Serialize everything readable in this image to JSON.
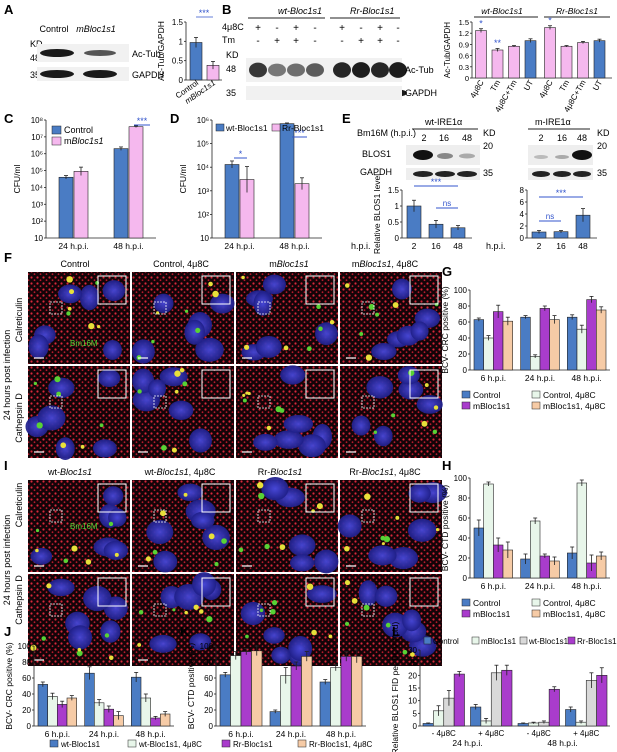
{
  "colors": {
    "blue": "#4a7cc4",
    "pink": "#f5b8ee",
    "magenta": "#a93ccc",
    "peach": "#f6cba6",
    "lightgreen": "#e8f6ea",
    "lightgray": "#d9d9d9",
    "sig_blue": "#3355cc",
    "sig_red": "#d22222",
    "micro_blue": "#3230a0",
    "micro_red": "#d9283a",
    "micro_green": "#58d235",
    "micro_yellow": "#e8e03a"
  },
  "panelA": {
    "letter": "A",
    "kd": "KD",
    "marker48": "48",
    "marker35": "35",
    "lanes": [
      "Control",
      "mBloc1s1"
    ],
    "ab_tub": "Ac-Tub",
    "ab_gapdh": "GAPDH",
    "sig": "***",
    "chart_data": {
      "type": "bar",
      "categories": [
        "Control",
        "mBloc1s1"
      ],
      "values": [
        0.97,
        0.38
      ],
      "errors": [
        0.13,
        0.1
      ],
      "ylabel": "Ac-Tub/GAPDH",
      "ylim": [
        0,
        1.5
      ],
      "yticks": [
        "0",
        "0.5",
        "1",
        "1.5"
      ]
    }
  },
  "panelB": {
    "letter": "B",
    "kd": "KD",
    "marker48": "48",
    "marker35": "35",
    "group_wt": "wt-Bloc1s1",
    "group_rr": "Rr-Bloc1s1",
    "row_u48c": "4μ8C",
    "row_tm": "Tm",
    "u48c_signs": [
      "+",
      "-",
      "+",
      "-",
      "+",
      "-",
      "+",
      "-"
    ],
    "tm_signs": [
      "-",
      "+",
      "+",
      "-",
      "-",
      "+",
      "+",
      "-"
    ],
    "ab_tub": "Ac-Tub",
    "ab_gapdh": "GAPDH",
    "chart_data": {
      "type": "bar",
      "groups": [
        "wt-Bloc1s1",
        "Rr-Bloc1s1"
      ],
      "categories": [
        "4μ8C",
        "Tm",
        "4μ8C+Tm",
        "UT",
        "4μ8C",
        "Tm",
        "4μ8C+Tm",
        "UT"
      ],
      "values": [
        1.27,
        0.75,
        0.85,
        1.0,
        1.35,
        0.85,
        0.95,
        1.0
      ],
      "errors": [
        0.05,
        0.04,
        0.02,
        0.05,
        0.05,
        0.02,
        0.03,
        0.04
      ],
      "colors": [
        "pink",
        "pink",
        "pink",
        "blue",
        "pink",
        "pink",
        "pink",
        "blue"
      ],
      "sig": [
        "*",
        "**",
        "",
        "",
        "*",
        "",
        "",
        ""
      ],
      "ylabel": "Ac-Tub/GAPDH",
      "ylim": [
        0,
        1.5
      ],
      "yticks": [
        "0",
        "0.3",
        "0.6",
        "0.9",
        "1.2",
        "1.5"
      ]
    }
  },
  "panelC": {
    "letter": "C",
    "chart_data": {
      "type": "bar",
      "categories": [
        "24 h.p.i.",
        "48 h.p.i."
      ],
      "series": [
        {
          "name": "Control",
          "values": [
            40000,
            2000000
          ],
          "errors": [
            0.1,
            0.1
          ]
        },
        {
          "name": "mBloc1s1",
          "values": [
            90000,
            40000000
          ],
          "errors": [
            0.25,
            0.05
          ]
        }
      ],
      "ylabel": "CFU/ml",
      "yscale": "log",
      "ylim": [
        10,
        100000000
      ],
      "yticks": [
        "10",
        "10²",
        "10³",
        "10⁴",
        "10⁵",
        "10⁶",
        "10⁷",
        "10⁸"
      ],
      "sig": "***",
      "legend": "top-left"
    }
  },
  "panelD": {
    "letter": "D",
    "chart_data": {
      "type": "bar",
      "categories": [
        "24 h.p.i.",
        "48 h.p.i."
      ],
      "series": [
        {
          "name": "wt-Bloc1s1",
          "values": [
            13000,
            700000
          ],
          "errors": [
            0.15,
            0.03
          ]
        },
        {
          "name": "Rr-Bloc1s1",
          "values": [
            3000,
            2000
          ],
          "errors": [
            0.55,
            0.25
          ]
        }
      ],
      "ylabel": "CFU/ml",
      "yscale": "log",
      "ylim": [
        10,
        1000000
      ],
      "yticks": [
        "10",
        "10²",
        "10³",
        "10⁴",
        "10⁵",
        "10⁶"
      ],
      "sig": [
        "*",
        "***"
      ],
      "legend": "top"
    }
  },
  "panelE": {
    "letter": "E",
    "bm16m": "Bm16M (h.p.i.)",
    "left_title": "wt-IRE1α",
    "right_title": "m-IRE1α",
    "lanes": [
      "2",
      "16",
      "48"
    ],
    "kd": "KD",
    "m20": "20",
    "m35": "35",
    "ab_blos": "BLOS1",
    "ab_gapdh": "GAPDH",
    "hpi": "h.p.i.",
    "chart_left": {
      "type": "bar",
      "categories": [
        "2",
        "16",
        "48"
      ],
      "values": [
        1.0,
        0.43,
        0.32
      ],
      "errors": [
        0.18,
        0.12,
        0.07
      ],
      "ylabel": "Relative BLOS1 level",
      "ylim": [
        0,
        1.5
      ],
      "yticks": [
        "0",
        "0.5",
        "1",
        "1.5"
      ],
      "sig": [
        "***",
        "ns"
      ]
    },
    "chart_right": {
      "type": "bar",
      "categories": [
        "2",
        "16",
        "48"
      ],
      "values": [
        1.0,
        1.05,
        3.8
      ],
      "errors": [
        0.25,
        0.2,
        1.1
      ],
      "ylim": [
        0,
        8
      ],
      "yticks": [
        "0",
        "2",
        "4",
        "6",
        "8"
      ],
      "sig": [
        "ns",
        "***"
      ]
    }
  },
  "panelF": {
    "letter": "F",
    "cols": [
      "Control",
      "Control, 4μ8C",
      "mBloc1s1",
      "mBloc1s1, 4μ8C"
    ],
    "side": "24 hours post infection",
    "row_labels": [
      "Calreticulin",
      "Cathepsin D"
    ],
    "stain": "Bm16M"
  },
  "panelG": {
    "letter": "G",
    "chart_data": {
      "type": "bar",
      "categories": [
        "6 h.p.i.",
        "24 h.p.i.",
        "48 h.p.i."
      ],
      "series": [
        {
          "name": "Control",
          "values": [
            63,
            66,
            66
          ],
          "errors": [
            2,
            2,
            3
          ]
        },
        {
          "name": "Control, 4μ8C",
          "values": [
            40,
            17,
            51
          ],
          "errors": [
            3,
            2,
            5
          ]
        },
        {
          "name": "mBloc1s1",
          "values": [
            73,
            77,
            88
          ],
          "errors": [
            8,
            3,
            4
          ]
        },
        {
          "name": "mBloc1s1, 4μ8C",
          "values": [
            61,
            63,
            75
          ],
          "errors": [
            5,
            5,
            4
          ]
        }
      ],
      "ylabel": "BCV- CRC positive (%)",
      "ylim": [
        0,
        100
      ],
      "yticks": [
        "0",
        "20",
        "40",
        "60",
        "80",
        "100"
      ],
      "legend": "bottom"
    }
  },
  "panelI": {
    "letter": "I",
    "cols": [
      "wt-Bloc1s1",
      "wt-Bloc1s1, 4μ8C",
      "Rr-Bloc1s1",
      "Rr-Bloc1s1, 4μ8C"
    ],
    "side": "24 hours post infection",
    "row_labels": [
      "Calreticulin",
      "Cathepsin D"
    ],
    "stain": "Bm16M"
  },
  "panelH": {
    "letter": "H",
    "chart_data": {
      "type": "bar",
      "categories": [
        "6 h.p.i.",
        "24 h.p.i.",
        "48 h.p.i."
      ],
      "series": [
        {
          "name": "Control",
          "values": [
            50,
            19,
            25
          ],
          "errors": [
            8,
            5,
            6
          ]
        },
        {
          "name": "Control, 4μ8C",
          "values": [
            94,
            57,
            95
          ],
          "errors": [
            2,
            3,
            3
          ]
        },
        {
          "name": "mBloc1s1",
          "values": [
            33,
            22,
            15
          ],
          "errors": [
            7,
            2,
            8
          ]
        },
        {
          "name": "mBloc1s1, 4μ8C",
          "values": [
            28,
            17,
            22
          ],
          "errors": [
            8,
            4,
            4
          ]
        }
      ],
      "ylabel": "BCV- CTD positive (%)",
      "ylim": [
        0,
        100
      ],
      "yticks": [
        "0",
        "20",
        "40",
        "60",
        "80",
        "100"
      ],
      "legend": "bottom"
    }
  },
  "panelJ": {
    "letter": "J",
    "chart_data": {
      "type": "bar",
      "categories": [
        "6 h.p.i.",
        "24 h.p.i.",
        "48 h.p.i."
      ],
      "series": [
        {
          "name": "wt-Bloc1s1",
          "values": [
            52,
            66,
            61
          ],
          "errors": [
            3,
            8,
            6
          ]
        },
        {
          "name": "wt-Bloc1s1, 4μ8C",
          "values": [
            37,
            29,
            35
          ],
          "errors": [
            4,
            4,
            5
          ]
        },
        {
          "name": "Rr-Bloc1s1",
          "values": [
            27,
            21,
            10
          ],
          "errors": [
            4,
            4,
            2
          ]
        },
        {
          "name": "Rr-Bloc1s1, 4μ8C",
          "values": [
            35,
            13,
            15
          ],
          "errors": [
            3,
            5,
            3
          ]
        }
      ],
      "ylabel": "BCV- CRC positive (%)",
      "ylim": [
        0,
        100
      ],
      "yticks": [
        "0",
        "20",
        "40",
        "60",
        "80",
        "100"
      ]
    }
  },
  "panelK": {
    "letter": "K",
    "chart_data": {
      "type": "bar",
      "categories": [
        "6 h.p.i.",
        "24 h.p.i.",
        "48 h.p.i."
      ],
      "series": [
        {
          "name": "wt-Bloc1s1",
          "values": [
            64,
            18,
            55
          ],
          "errors": [
            3,
            2,
            3
          ]
        },
        {
          "name": "wt-Bloc1s1, 4μ8C",
          "values": [
            88,
            63,
            73
          ],
          "errors": [
            5,
            10,
            4
          ]
        },
        {
          "name": "Rr-Bloc1s1",
          "values": [
            93,
            75,
            87
          ],
          "errors": [
            4,
            5,
            6
          ]
        },
        {
          "name": "Rr-Bloc1s1, 4μ8C",
          "values": [
            94,
            87,
            87
          ],
          "errors": [
            6,
            6,
            8
          ]
        }
      ],
      "ylabel": "BCV- CTD positive (%)",
      "ylim": [
        0,
        100
      ],
      "yticks": [
        "0",
        "20",
        "40",
        "60",
        "80",
        "100"
      ]
    },
    "legend_names": [
      "wt-Bloc1s1",
      "wt-Bloc1s1, 4μ8C",
      "Rr-Bloc1s1",
      "Rr-Bloc1s1, 4μ8C"
    ]
  },
  "panelL": {
    "letter": "L",
    "chart_data": {
      "type": "bar",
      "groups": [
        "24 h.p.i.",
        "48 h.p.i."
      ],
      "categories": [
        "- 4μ8C",
        "+ 4μ8C",
        "- 4μ8C",
        "+ 4μ8C"
      ],
      "series": [
        {
          "name": "Control",
          "values": [
            1,
            7.5,
            1,
            6.5
          ],
          "errors": [
            0.2,
            1,
            0.2,
            1
          ]
        },
        {
          "name": "mBloc1s1",
          "values": [
            6,
            2,
            1.2,
            1.5
          ],
          "errors": [
            2,
            1,
            0.3,
            0.5
          ]
        },
        {
          "name": "wt-Bloc1s1",
          "values": [
            11,
            21,
            1.5,
            18
          ],
          "errors": [
            3,
            3,
            0.5,
            3
          ]
        },
        {
          "name": "Rr-Bloc1s1",
          "values": [
            20.5,
            22,
            14.5,
            20
          ],
          "errors": [
            1,
            2,
            1,
            3
          ]
        }
      ],
      "ylabel": "Relative BLOS1 FID per BCV (fold)",
      "ylim": [
        0,
        30
      ],
      "yticks": [
        "0",
        "5",
        "10",
        "15",
        "20",
        "25",
        "30"
      ],
      "legend": "top"
    },
    "ns_mark": "S"
  }
}
